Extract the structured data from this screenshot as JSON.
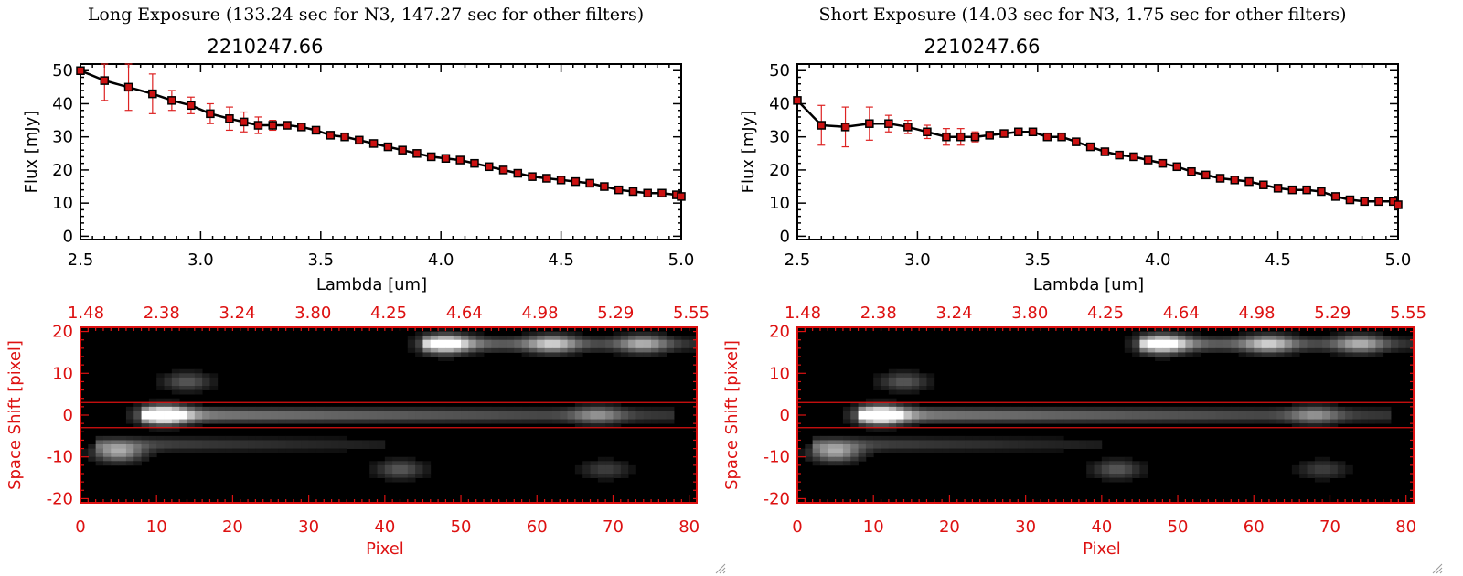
{
  "panels": [
    {
      "title": "Long Exposure (133.24 sec for N3, 147.27 sec for other filters)"
    },
    {
      "title": "Short Exposure (14.03 sec for N3, 1.75 sec for other filters)"
    }
  ],
  "colors": {
    "spectrum_line": "#000000",
    "error_bar": "#dd2222",
    "marker": "#cc1111",
    "image_axis": "#dd1111",
    "image_bg": "#000000"
  },
  "chart_data": [
    {
      "type": "line",
      "title": "2210247.66",
      "xlabel": "Lambda [um]",
      "ylabel": "Flux [mJy]",
      "xlim": [
        2.5,
        5.0
      ],
      "ylim": [
        -1,
        52
      ],
      "x_ticks": [
        "2.5",
        "3.0",
        "3.5",
        "4.0",
        "4.5",
        "5.0"
      ],
      "y_ticks": [
        "0",
        "10",
        "20",
        "30",
        "40",
        "50"
      ],
      "x": [
        2.5,
        2.6,
        2.7,
        2.8,
        2.88,
        2.96,
        3.04,
        3.12,
        3.18,
        3.24,
        3.3,
        3.36,
        3.42,
        3.48,
        3.54,
        3.6,
        3.66,
        3.72,
        3.78,
        3.84,
        3.9,
        3.96,
        4.02,
        4.08,
        4.14,
        4.2,
        4.26,
        4.32,
        4.38,
        4.44,
        4.5,
        4.56,
        4.62,
        4.68,
        4.74,
        4.8,
        4.86,
        4.92,
        4.98,
        5.0
      ],
      "y": [
        50,
        47,
        45,
        43,
        41,
        39.5,
        37,
        35.5,
        34.5,
        33.5,
        33.5,
        33.5,
        33,
        32,
        30.5,
        30,
        29,
        28,
        27,
        26,
        25,
        24,
        23.5,
        23,
        22,
        21,
        20,
        19,
        18,
        17.5,
        17,
        16.5,
        16,
        15,
        14,
        13.5,
        13,
        13,
        12.5,
        12
      ],
      "error": [
        0,
        6,
        7,
        6,
        3,
        2.5,
        3,
        3.5,
        3,
        2.5,
        1.5,
        1,
        0.5,
        0.5,
        0.5,
        0.5,
        0.5,
        0.5,
        0.5,
        0.5,
        0.5,
        0.5,
        0.5,
        0.5,
        0.5,
        0.5,
        0.5,
        0.5,
        0.5,
        0.5,
        0.5,
        0.5,
        0.5,
        0.5,
        0.5,
        0.5,
        0.5,
        0.5,
        0.5,
        0.5
      ]
    },
    {
      "type": "line",
      "title": "2210247.66",
      "xlabel": "Lambda [um]",
      "ylabel": "Flux [mJy]",
      "xlim": [
        2.5,
        5.0
      ],
      "ylim": [
        -1,
        52
      ],
      "x_ticks": [
        "2.5",
        "3.0",
        "3.5",
        "4.0",
        "4.5",
        "5.0"
      ],
      "y_ticks": [
        "0",
        "10",
        "20",
        "30",
        "40",
        "50"
      ],
      "x": [
        2.5,
        2.6,
        2.7,
        2.8,
        2.88,
        2.96,
        3.04,
        3.12,
        3.18,
        3.24,
        3.3,
        3.36,
        3.42,
        3.48,
        3.54,
        3.6,
        3.66,
        3.72,
        3.78,
        3.84,
        3.9,
        3.96,
        4.02,
        4.08,
        4.14,
        4.2,
        4.26,
        4.32,
        4.38,
        4.44,
        4.5,
        4.56,
        4.62,
        4.68,
        4.74,
        4.8,
        4.86,
        4.92,
        4.98,
        5.0
      ],
      "y": [
        41,
        33.5,
        33,
        34,
        34,
        33,
        31.5,
        30,
        30,
        30,
        30.5,
        31,
        31.5,
        31.5,
        30,
        30,
        28.5,
        27,
        25.5,
        24.5,
        24,
        23,
        22,
        21,
        19.5,
        18.5,
        17.5,
        17,
        16.5,
        15.5,
        14.5,
        14,
        14,
        13.5,
        12,
        11,
        10.5,
        10.5,
        10.5,
        9.5
      ],
      "error": [
        0,
        6,
        6,
        5,
        2.5,
        2,
        2,
        2.5,
        2.5,
        1.5,
        1,
        0.5,
        0.5,
        0.5,
        0.5,
        0.5,
        0.5,
        0.5,
        0.5,
        0.5,
        0.5,
        0.5,
        0.5,
        0.5,
        0.5,
        0.5,
        0.5,
        0.5,
        0.5,
        0.5,
        0.5,
        0.5,
        0.5,
        0.5,
        0.5,
        0.5,
        0.5,
        0.5,
        0.5,
        0.5
      ]
    },
    {
      "type": "heatmap",
      "xlabel": "Pixel",
      "ylabel": "Space Shift [pixel]",
      "xlim": [
        0,
        81
      ],
      "ylim": [
        -21,
        21
      ],
      "x_ticks": [
        "0",
        "10",
        "20",
        "30",
        "40",
        "50",
        "60",
        "70",
        "80"
      ],
      "y_ticks": [
        "20",
        "10",
        "0",
        "-10",
        "-20"
      ],
      "top_ticks": [
        "1.48",
        "2.38",
        "3.24",
        "3.80",
        "4.25",
        "4.64",
        "4.98",
        "5.29",
        "5.55"
      ],
      "aperture": [
        -3,
        3
      ],
      "blobs": [
        {
          "x": 11,
          "y": 0,
          "amp": 1.0
        },
        {
          "x": 5,
          "y": -9,
          "amp": 0.6
        },
        {
          "x": 14,
          "y": 8,
          "amp": 0.35
        },
        {
          "x": 48,
          "y": 17,
          "amp": 0.85
        },
        {
          "x": 62,
          "y": 17,
          "amp": 0.55
        },
        {
          "x": 74,
          "y": 17,
          "amp": 0.5
        },
        {
          "x": 68,
          "y": 0,
          "amp": 0.35
        },
        {
          "x": 42,
          "y": -13,
          "amp": 0.35
        },
        {
          "x": 69,
          "y": -13,
          "amp": 0.25
        }
      ],
      "streaks": [
        {
          "x0": 8,
          "x1": 78,
          "y": 0,
          "amp": 0.55
        },
        {
          "x0": 2,
          "x1": 40,
          "y": -7,
          "amp": 0.3
        },
        {
          "x0": 45,
          "x1": 81,
          "y": 17,
          "amp": 0.45
        }
      ]
    },
    {
      "type": "heatmap",
      "xlabel": "Pixel",
      "ylabel": "Space Shift [pixel]",
      "xlim": [
        0,
        81
      ],
      "ylim": [
        -21,
        21
      ],
      "x_ticks": [
        "0",
        "10",
        "20",
        "30",
        "40",
        "50",
        "60",
        "70",
        "80"
      ],
      "y_ticks": [
        "20",
        "10",
        "0",
        "-10",
        "-20"
      ],
      "top_ticks": [
        "1.48",
        "2.38",
        "3.24",
        "3.80",
        "4.25",
        "4.64",
        "4.98",
        "5.29",
        "5.55"
      ],
      "aperture": [
        -3,
        3
      ],
      "blobs": [
        {
          "x": 11,
          "y": 0,
          "amp": 1.0
        },
        {
          "x": 5,
          "y": -9,
          "amp": 0.6
        },
        {
          "x": 14,
          "y": 8,
          "amp": 0.35
        },
        {
          "x": 48,
          "y": 17,
          "amp": 0.85
        },
        {
          "x": 62,
          "y": 17,
          "amp": 0.55
        },
        {
          "x": 74,
          "y": 17,
          "amp": 0.5
        },
        {
          "x": 68,
          "y": 0,
          "amp": 0.35
        },
        {
          "x": 42,
          "y": -13,
          "amp": 0.35
        },
        {
          "x": 69,
          "y": -13,
          "amp": 0.25
        }
      ],
      "streaks": [
        {
          "x0": 8,
          "x1": 78,
          "y": 0,
          "amp": 0.55
        },
        {
          "x0": 2,
          "x1": 40,
          "y": -7,
          "amp": 0.3
        },
        {
          "x0": 45,
          "x1": 81,
          "y": 17,
          "amp": 0.45
        }
      ]
    }
  ]
}
